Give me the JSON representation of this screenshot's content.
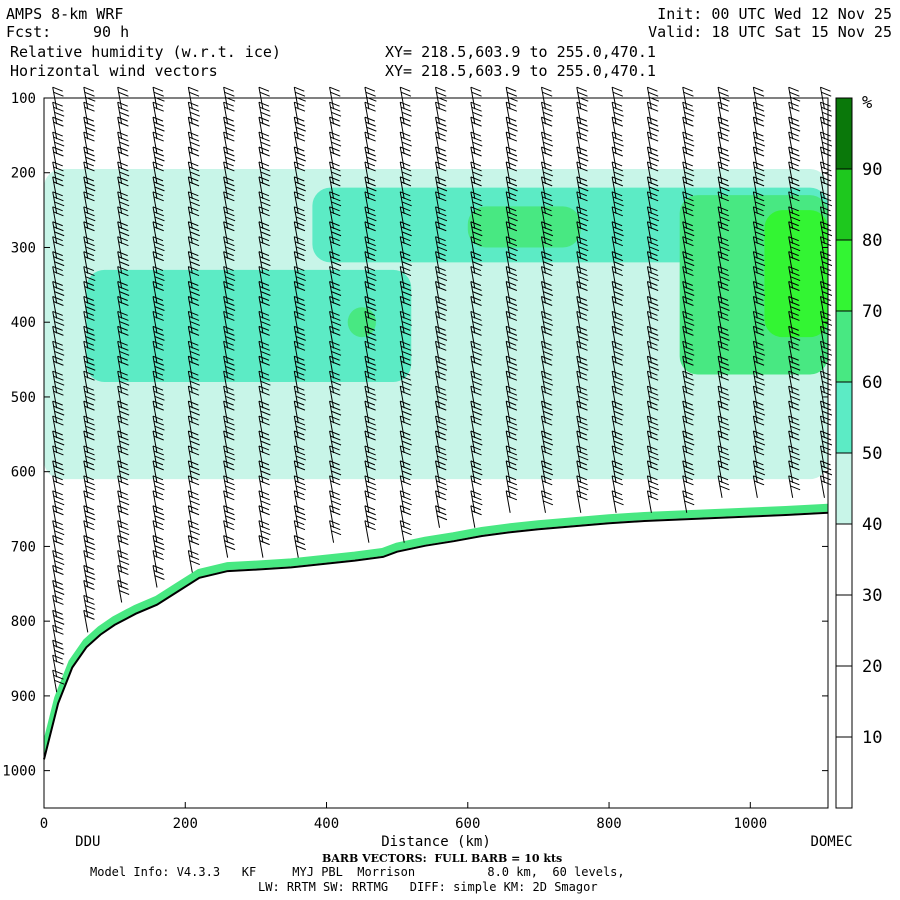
{
  "header": {
    "model": "AMPS 8-km WRF",
    "fcst_label": "Fcst:",
    "fcst_value": "90 h",
    "field1": "Relative humidity (w.r.t. ice)",
    "field2": "Horizontal wind vectors",
    "xy1": "XY= 218.5,603.9 to 255.0,470.1",
    "xy2": "XY= 218.5,603.9 to 255.0,470.1",
    "init": "Init: 00 UTC Wed 12 Nov 25",
    "valid": "Valid: 18 UTC Sat 15 Nov 25"
  },
  "footer": {
    "barb_note": "BARB VECTORS:  FULL BARB = 10 kts",
    "model_info": "Model Info: V4.3.3   KF     MYJ PBL  Morrison          8.0 km,  60 levels,",
    "physics": "LW: RRTM SW: RRTMG   DIFF: simple KM: 2D Smagor"
  },
  "chart_data": {
    "type": "heatmap",
    "title": "Relative humidity (w.r.t. ice)",
    "xlabel": "Distance (km)",
    "ylabel": "",
    "xlim": [
      0,
      1110
    ],
    "ylim": [
      1050,
      100
    ],
    "x_ticks": [
      0,
      200,
      400,
      600,
      800,
      1000
    ],
    "y_ticks": [
      100,
      200,
      300,
      400,
      500,
      600,
      700,
      800,
      900,
      1000
    ],
    "x_endpoint_labels": [
      {
        "x": 62,
        "label": "DDU"
      },
      {
        "x": 1115,
        "label": "DOMEC"
      }
    ],
    "colorbar": {
      "unit": "%",
      "levels": [
        10,
        20,
        30,
        40,
        50,
        60,
        70,
        80,
        90
      ],
      "colors": [
        "#ffffff",
        "#ffffff",
        "#ffffff",
        "#c8f5e8",
        "#5cebc5",
        "#48e882",
        "#33f533",
        "#1ec81e",
        "#0a780a"
      ]
    },
    "terrain_surface": {
      "x": [
        0,
        20,
        40,
        60,
        80,
        100,
        130,
        160,
        190,
        220,
        260,
        300,
        350,
        400,
        440,
        480,
        500,
        540,
        580,
        620,
        660,
        700,
        750,
        800,
        850,
        900,
        950,
        1000,
        1050,
        1110
      ],
      "p": [
        985,
        910,
        862,
        835,
        818,
        805,
        790,
        778,
        760,
        742,
        733,
        731,
        728,
        723,
        719,
        714,
        707,
        699,
        693,
        686,
        681,
        677,
        673,
        669,
        666,
        664,
        662,
        660,
        658,
        655
      ]
    },
    "moist_regions": [
      {
        "x": [
          0,
          1110
        ],
        "p": [
          195,
          610
        ],
        "rh": 40
      },
      {
        "x": [
          60,
          520
        ],
        "p": [
          330,
          480
        ],
        "rh": 50
      },
      {
        "x": [
          380,
          1110
        ],
        "p": [
          220,
          320
        ],
        "rh": 50
      },
      {
        "x": [
          900,
          1110
        ],
        "p": [
          230,
          470
        ],
        "rh": 60
      },
      {
        "x": [
          430,
          470
        ],
        "p": [
          380,
          420
        ],
        "rh": 60
      },
      {
        "x": [
          600,
          760
        ],
        "p": [
          245,
          300
        ],
        "rh": 60
      },
      {
        "x": [
          1020,
          1110
        ],
        "p": [
          250,
          420
        ],
        "rh": 70
      }
    ],
    "wind_barb_columns_x": [
      18,
      62,
      110,
      160,
      210,
      260,
      310,
      360,
      410,
      460,
      510,
      560,
      610,
      660,
      710,
      760,
      810,
      860,
      910,
      960,
      1010,
      1060,
      1105
    ],
    "barbs_full_kts": 10
  }
}
